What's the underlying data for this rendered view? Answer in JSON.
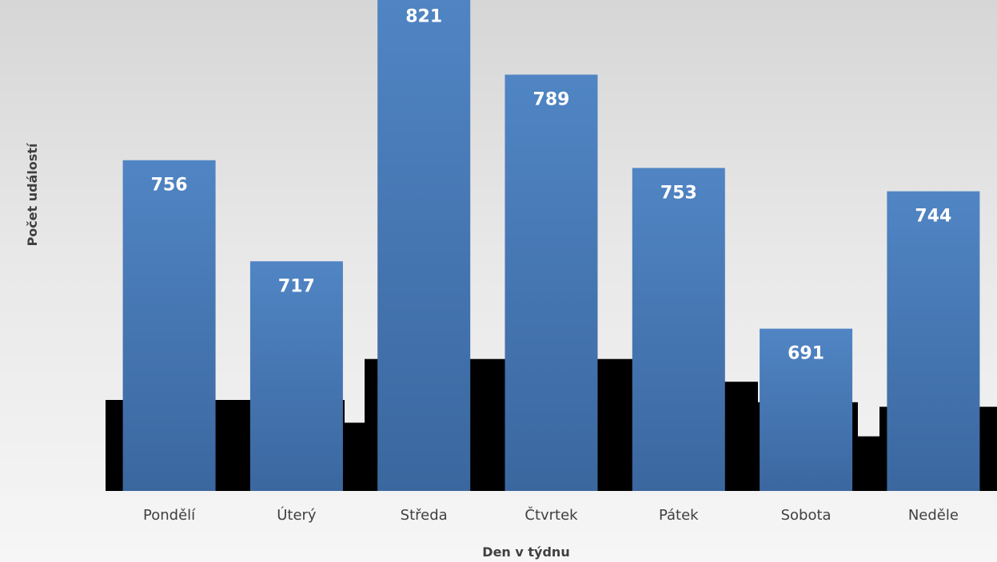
{
  "chart_data": {
    "type": "bar",
    "title": "",
    "xlabel": "Den v týdnu",
    "ylabel": "Počet událostí",
    "categories": [
      "Pondělí",
      "Úterý",
      "Středa",
      "Čtvrtek",
      "Pátek",
      "Sobota",
      "Neděle"
    ],
    "values": [
      756,
      717,
      821,
      789,
      753,
      691,
      744
    ],
    "value_labels": [
      "756",
      "717",
      "821",
      "789",
      "753",
      "691",
      "744"
    ],
    "bar_color": "#4f81bd",
    "background_steps": [
      {
        "category": "Pondělí",
        "level": 0.4
      },
      {
        "category": "Úterý",
        "level": 0.4
      },
      {
        "category": "Úterý",
        "level": 0.3
      },
      {
        "category": "Středa",
        "level": 0.58
      },
      {
        "category": "Čtvrtek",
        "level": 0.58
      },
      {
        "category": "Pátek",
        "level": 0.48
      },
      {
        "category": "Sobota",
        "level": 0.39
      },
      {
        "category": "Sobota",
        "level": 0.24
      },
      {
        "category": "Neděle",
        "level": 0.37
      }
    ],
    "grid": false,
    "legend": "none"
  }
}
